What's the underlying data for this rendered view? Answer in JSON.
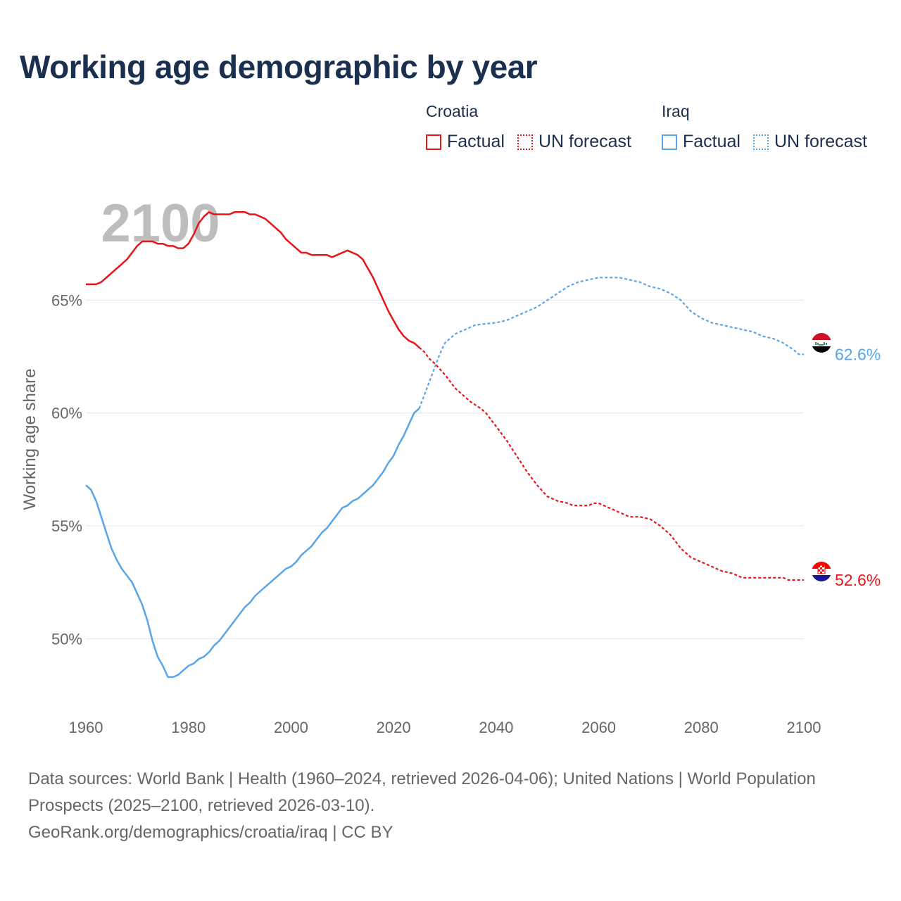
{
  "title": "Working age demographic by year",
  "legend": {
    "groups": [
      {
        "name": "Croatia",
        "color": "#e8141a",
        "factual_label": "Factual",
        "forecast_label": "UN forecast"
      },
      {
        "name": "Iraq",
        "color": "#5aa5e6",
        "factual_label": "Factual",
        "forecast_label": "UN forecast"
      }
    ]
  },
  "footer": {
    "sources": "Data sources: World Bank | Health (1960–2024, retrieved 2026-04-06); United Nations | World Population Prospects (2025–2100, retrieved 2026-03-10).",
    "link": "GeoRank.org/demographics/croatia/iraq | CC BY"
  },
  "chart_data": {
    "type": "line",
    "title": "Working age demographic by year",
    "year_label": "2100",
    "xlabel": "",
    "ylabel": "Working age share",
    "xlim": [
      1960,
      2100
    ],
    "ylim": [
      46.8,
      70.5
    ],
    "x_ticks": [
      1960,
      1980,
      2000,
      2020,
      2040,
      2060,
      2080,
      2100
    ],
    "x_tick_labels": [
      "1960",
      "1980",
      "2000",
      "2020",
      "2040",
      "2060",
      "2080",
      "2100"
    ],
    "y_ticks": [
      50,
      55,
      60,
      65
    ],
    "y_tick_labels": [
      "50%",
      "55%",
      "60%",
      "65%"
    ],
    "grid": true,
    "forecast_start": 2025,
    "series": [
      {
        "name": "Croatia",
        "color": "#e8141a",
        "end_label": "52.6%",
        "flag": "croatia-flag",
        "points": [
          [
            1960,
            65.7
          ],
          [
            1962,
            65.7
          ],
          [
            1963,
            65.8
          ],
          [
            1965,
            66.2
          ],
          [
            1967,
            66.6
          ],
          [
            1968,
            66.8
          ],
          [
            1970,
            67.4
          ],
          [
            1971,
            67.6
          ],
          [
            1973,
            67.6
          ],
          [
            1974,
            67.5
          ],
          [
            1975,
            67.5
          ],
          [
            1976,
            67.4
          ],
          [
            1977,
            67.4
          ],
          [
            1978,
            67.3
          ],
          [
            1979,
            67.3
          ],
          [
            1980,
            67.5
          ],
          [
            1981,
            67.9
          ],
          [
            1982,
            68.4
          ],
          [
            1983,
            68.7
          ],
          [
            1984,
            68.9
          ],
          [
            1985,
            68.8
          ],
          [
            1986,
            68.8
          ],
          [
            1988,
            68.8
          ],
          [
            1989,
            68.9
          ],
          [
            1991,
            68.9
          ],
          [
            1992,
            68.8
          ],
          [
            1993,
            68.8
          ],
          [
            1994,
            68.7
          ],
          [
            1995,
            68.6
          ],
          [
            1996,
            68.4
          ],
          [
            1997,
            68.2
          ],
          [
            1998,
            68.0
          ],
          [
            1999,
            67.7
          ],
          [
            2000,
            67.5
          ],
          [
            2001,
            67.3
          ],
          [
            2002,
            67.1
          ],
          [
            2003,
            67.1
          ],
          [
            2004,
            67.0
          ],
          [
            2006,
            67.0
          ],
          [
            2007,
            67.0
          ],
          [
            2008,
            66.9
          ],
          [
            2009,
            67.0
          ],
          [
            2010,
            67.1
          ],
          [
            2011,
            67.2
          ],
          [
            2012,
            67.1
          ],
          [
            2013,
            67.0
          ],
          [
            2014,
            66.8
          ],
          [
            2015,
            66.4
          ],
          [
            2016,
            66.0
          ],
          [
            2017,
            65.5
          ],
          [
            2018,
            65.0
          ],
          [
            2019,
            64.5
          ],
          [
            2020,
            64.1
          ],
          [
            2021,
            63.7
          ],
          [
            2022,
            63.4
          ],
          [
            2023,
            63.2
          ],
          [
            2024,
            63.1
          ],
          [
            2025,
            62.9
          ],
          [
            2026,
            62.7
          ],
          [
            2027,
            62.4
          ],
          [
            2028,
            62.2
          ],
          [
            2030,
            61.7
          ],
          [
            2031,
            61.4
          ],
          [
            2032,
            61.1
          ],
          [
            2034,
            60.7
          ],
          [
            2035,
            60.5
          ],
          [
            2037,
            60.2
          ],
          [
            2038,
            60.0
          ],
          [
            2040,
            59.4
          ],
          [
            2042,
            58.8
          ],
          [
            2044,
            58.1
          ],
          [
            2046,
            57.4
          ],
          [
            2048,
            56.8
          ],
          [
            2050,
            56.3
          ],
          [
            2052,
            56.1
          ],
          [
            2054,
            56.0
          ],
          [
            2055,
            55.9
          ],
          [
            2057,
            55.9
          ],
          [
            2058,
            55.9
          ],
          [
            2059,
            56.0
          ],
          [
            2060,
            56.0
          ],
          [
            2062,
            55.8
          ],
          [
            2064,
            55.6
          ],
          [
            2066,
            55.4
          ],
          [
            2068,
            55.4
          ],
          [
            2070,
            55.3
          ],
          [
            2072,
            55.0
          ],
          [
            2074,
            54.6
          ],
          [
            2075,
            54.3
          ],
          [
            2076,
            54.0
          ],
          [
            2078,
            53.6
          ],
          [
            2080,
            53.4
          ],
          [
            2082,
            53.2
          ],
          [
            2084,
            53.0
          ],
          [
            2086,
            52.9
          ],
          [
            2088,
            52.7
          ],
          [
            2090,
            52.7
          ],
          [
            2092,
            52.7
          ],
          [
            2094,
            52.7
          ],
          [
            2096,
            52.7
          ],
          [
            2097,
            52.6
          ],
          [
            2100,
            52.6
          ]
        ]
      },
      {
        "name": "Iraq",
        "color": "#5aa5e6",
        "end_label": "62.6%",
        "flag": "iraq-flag",
        "points": [
          [
            1960,
            56.8
          ],
          [
            1961,
            56.6
          ],
          [
            1962,
            56.1
          ],
          [
            1963,
            55.4
          ],
          [
            1964,
            54.7
          ],
          [
            1965,
            54.0
          ],
          [
            1966,
            53.5
          ],
          [
            1967,
            53.1
          ],
          [
            1968,
            52.8
          ],
          [
            1969,
            52.5
          ],
          [
            1970,
            52.0
          ],
          [
            1971,
            51.5
          ],
          [
            1972,
            50.8
          ],
          [
            1973,
            49.9
          ],
          [
            1974,
            49.2
          ],
          [
            1975,
            48.8
          ],
          [
            1976,
            48.3
          ],
          [
            1977,
            48.3
          ],
          [
            1978,
            48.4
          ],
          [
            1979,
            48.6
          ],
          [
            1980,
            48.8
          ],
          [
            1981,
            48.9
          ],
          [
            1982,
            49.1
          ],
          [
            1983,
            49.2
          ],
          [
            1984,
            49.4
          ],
          [
            1985,
            49.7
          ],
          [
            1986,
            49.9
          ],
          [
            1987,
            50.2
          ],
          [
            1988,
            50.5
          ],
          [
            1989,
            50.8
          ],
          [
            1990,
            51.1
          ],
          [
            1991,
            51.4
          ],
          [
            1992,
            51.6
          ],
          [
            1993,
            51.9
          ],
          [
            1994,
            52.1
          ],
          [
            1995,
            52.3
          ],
          [
            1996,
            52.5
          ],
          [
            1997,
            52.7
          ],
          [
            1998,
            52.9
          ],
          [
            1999,
            53.1
          ],
          [
            2000,
            53.2
          ],
          [
            2001,
            53.4
          ],
          [
            2002,
            53.7
          ],
          [
            2003,
            53.9
          ],
          [
            2004,
            54.1
          ],
          [
            2005,
            54.4
          ],
          [
            2006,
            54.7
          ],
          [
            2007,
            54.9
          ],
          [
            2008,
            55.2
          ],
          [
            2009,
            55.5
          ],
          [
            2010,
            55.8
          ],
          [
            2011,
            55.9
          ],
          [
            2012,
            56.1
          ],
          [
            2013,
            56.2
          ],
          [
            2014,
            56.4
          ],
          [
            2015,
            56.6
          ],
          [
            2016,
            56.8
          ],
          [
            2017,
            57.1
          ],
          [
            2018,
            57.4
          ],
          [
            2019,
            57.8
          ],
          [
            2020,
            58.1
          ],
          [
            2021,
            58.6
          ],
          [
            2022,
            59.0
          ],
          [
            2023,
            59.5
          ],
          [
            2024,
            60.0
          ],
          [
            2025,
            60.2
          ],
          [
            2026,
            60.8
          ],
          [
            2027,
            61.4
          ],
          [
            2028,
            62.0
          ],
          [
            2029,
            62.6
          ],
          [
            2030,
            63.1
          ],
          [
            2032,
            63.5
          ],
          [
            2034,
            63.7
          ],
          [
            2036,
            63.9
          ],
          [
            2040,
            64.0
          ],
          [
            2042,
            64.1
          ],
          [
            2044,
            64.3
          ],
          [
            2046,
            64.5
          ],
          [
            2048,
            64.7
          ],
          [
            2050,
            65.0
          ],
          [
            2052,
            65.3
          ],
          [
            2054,
            65.6
          ],
          [
            2056,
            65.8
          ],
          [
            2058,
            65.9
          ],
          [
            2060,
            66.0
          ],
          [
            2064,
            66.0
          ],
          [
            2066,
            65.9
          ],
          [
            2068,
            65.8
          ],
          [
            2070,
            65.6
          ],
          [
            2072,
            65.5
          ],
          [
            2074,
            65.3
          ],
          [
            2076,
            65.0
          ],
          [
            2078,
            64.5
          ],
          [
            2080,
            64.2
          ],
          [
            2082,
            64.0
          ],
          [
            2084,
            63.9
          ],
          [
            2086,
            63.8
          ],
          [
            2088,
            63.7
          ],
          [
            2090,
            63.6
          ],
          [
            2092,
            63.4
          ],
          [
            2094,
            63.3
          ],
          [
            2096,
            63.1
          ],
          [
            2098,
            62.8
          ],
          [
            2099,
            62.6
          ],
          [
            2100,
            62.6
          ]
        ]
      }
    ]
  }
}
